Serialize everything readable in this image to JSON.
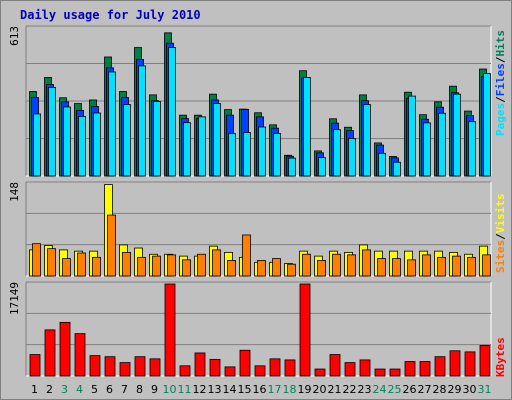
{
  "chart_data": [
    {
      "type": "bar",
      "panel": "hits-files-pages",
      "title": "Daily usage for July 2010",
      "y_top_label": "613",
      "ylim": [
        0,
        613
      ],
      "grid": true,
      "categories": [
        "1",
        "2",
        "3",
        "4",
        "5",
        "6",
        "7",
        "8",
        "9",
        "10",
        "11",
        "12",
        "13",
        "14",
        "15",
        "16",
        "17",
        "18",
        "19",
        "20",
        "21",
        "22",
        "23",
        "24",
        "25",
        "26",
        "27",
        "28",
        "29",
        "30",
        "31"
      ],
      "weekend_days": [
        "3",
        "4",
        "10",
        "11",
        "17",
        "18",
        "24",
        "25",
        "31"
      ],
      "series": [
        {
          "name": "Hits",
          "color": "#008040",
          "values": [
            350,
            408,
            324,
            300,
            315,
            493,
            350,
            532,
            336,
            593,
            252,
            252,
            339,
            275,
            277,
            262,
            212,
            86,
            436,
            104,
            237,
            202,
            336,
            137,
            81,
            347,
            254,
            307,
            372,
            269,
            443
          ]
        },
        {
          "name": "Files",
          "color": "#0040ff",
          "values": [
            325,
            379,
            307,
            272,
            288,
            448,
            325,
            483,
            312,
            550,
            238,
            238,
            315,
            252,
            276,
            245,
            198,
            82,
            406,
            96,
            219,
            188,
            312,
            128,
            75,
            322,
            235,
            285,
            345,
            250,
            412
          ]
        },
        {
          "name": "Pages",
          "color": "#00e0ff",
          "values": [
            257,
            367,
            286,
            247,
            261,
            431,
            296,
            456,
            309,
            532,
            221,
            245,
            300,
            176,
            180,
            203,
            176,
            74,
            408,
            76,
            192,
            155,
            296,
            94,
            57,
            331,
            220,
            260,
            339,
            225,
            424
          ]
        }
      ],
      "legend": {
        "labels": [
          "Pages",
          "Files",
          "Hits"
        ],
        "separator": "/",
        "placement": "right-vertical"
      }
    },
    {
      "type": "bar",
      "panel": "visits-sites",
      "y_top_label": "148",
      "ylim": [
        0,
        148
      ],
      "grid": true,
      "series": [
        {
          "name": "Visits",
          "color": "#ffff00",
          "values": [
            42,
            49,
            42,
            40,
            40,
            147,
            50,
            45,
            35,
            35,
            32,
            32,
            48,
            38,
            30,
            22,
            22,
            20,
            40,
            32,
            40,
            38,
            50,
            40,
            40,
            40,
            40,
            40,
            38,
            35,
            48
          ]
        },
        {
          "name": "Sites",
          "color": "#ff8000",
          "values": [
            52,
            44,
            28,
            37,
            30,
            98,
            38,
            30,
            32,
            34,
            26,
            35,
            42,
            25,
            66,
            25,
            28,
            19,
            35,
            25,
            35,
            34,
            42,
            28,
            28,
            26,
            34,
            30,
            32,
            30,
            34
          ]
        }
      ],
      "legend": {
        "labels": [
          "Sites",
          "Visits"
        ],
        "separator": "/",
        "placement": "right-vertical"
      }
    },
    {
      "type": "bar",
      "panel": "kbytes",
      "y_top_label": "17149",
      "ylim": [
        0,
        17149
      ],
      "grid": true,
      "series": [
        {
          "name": "KBytes",
          "color": "#ff0000",
          "values": [
            4000,
            8600,
            10000,
            7900,
            3800,
            3600,
            2500,
            3600,
            3200,
            17149,
            1900,
            4300,
            3100,
            1700,
            4800,
            1900,
            3200,
            3000,
            17149,
            1300,
            4000,
            2500,
            3000,
            1300,
            1300,
            2700,
            2700,
            3600,
            4700,
            4500,
            5700
          ]
        }
      ],
      "legend": {
        "labels": [
          "KBytes"
        ],
        "placement": "right-vertical"
      }
    }
  ],
  "colors": {
    "background": "#c0c0c0",
    "frame_light": "#ffffff",
    "frame_dark": "#808080",
    "grid": "#808080",
    "title": "#0000c0",
    "weekday_label": "#000000",
    "weekend_label": "#00805c"
  }
}
